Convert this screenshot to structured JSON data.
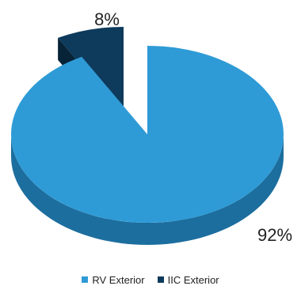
{
  "chart_data": {
    "type": "pie",
    "style": "3d-exploded",
    "title": "",
    "slices": [
      {
        "label": "RV Exterior",
        "value": 92,
        "display": "92%",
        "color": "#2f9bd6",
        "side_color": "#1c6e9e"
      },
      {
        "label": "IIC Exterior",
        "value": 8,
        "display": "8%",
        "color": "#0e3a5c",
        "side_color": "#072338"
      }
    ],
    "legend_position": "bottom"
  }
}
